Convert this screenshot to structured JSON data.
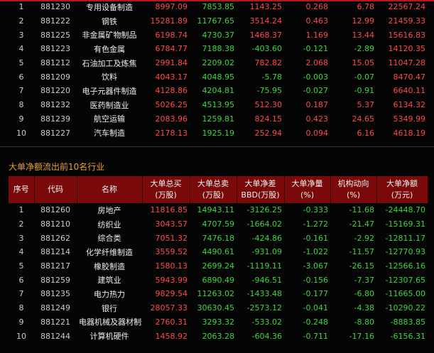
{
  "top_table": {
    "rows": [
      [
        "1",
        "881230",
        "专用设备制造",
        "8997.09",
        "7853.85",
        "1143.25",
        "0.268",
        "6.78",
        "22567.24"
      ],
      [
        "2",
        "881222",
        "钢铁",
        "15281.89",
        "11767.65",
        "3514.24",
        "0.463",
        "12.99",
        "21459.33"
      ],
      [
        "3",
        "881225",
        "非金属矿物制品",
        "6198.74",
        "4730.37",
        "1468.37",
        "1.169",
        "13.44",
        "15616.83"
      ],
      [
        "4",
        "881223",
        "有色金属",
        "6784.77",
        "7188.38",
        "-403.60",
        "-0.121",
        "-2.89",
        "14120.35"
      ],
      [
        "5",
        "881212",
        "石油加工及炼焦",
        "2991.84",
        "2209.02",
        "782.82",
        "2.068",
        "15.05",
        "11047.28"
      ],
      [
        "6",
        "881209",
        "饮料",
        "4043.17",
        "4048.95",
        "-5.78",
        "-0.003",
        "-0.07",
        "8470.47"
      ],
      [
        "7",
        "881220",
        "电子元器件制造",
        "4128.86",
        "4204.81",
        "-75.95",
        "-0.027",
        "-0.91",
        "6640.11"
      ],
      [
        "8",
        "881232",
        "医药制造业",
        "5026.25",
        "4513.95",
        "512.30",
        "0.187",
        "5.37",
        "6134.32"
      ],
      [
        "9",
        "881239",
        "航空运输",
        "2083.96",
        "1259.81",
        "824.15",
        "0.423",
        "24.65",
        "5349.99"
      ],
      [
        "10",
        "881227",
        "汽车制造",
        "2178.13",
        "1925.19",
        "252.94",
        "0.094",
        "6.16",
        "4618.19"
      ]
    ]
  },
  "section_title": "大单净额流出前10名行业",
  "bottom_table": {
    "header": [
      [
        "序号"
      ],
      [
        "代码"
      ],
      [
        "名称"
      ],
      [
        "大单总买",
        "(万股)"
      ],
      [
        "大单总卖",
        "(万股)"
      ],
      [
        "大单净差",
        "BBD(万股)"
      ],
      [
        "大单净量",
        "(%)"
      ],
      [
        "机构动向",
        "(%)"
      ],
      [
        "大单净额",
        "(万元)"
      ]
    ],
    "rows": [
      [
        "1",
        "881260",
        "房地产",
        "11816.85",
        "14943.11",
        "-3126.25",
        "-0.333",
        "-11.68",
        "-24448.70"
      ],
      [
        "2",
        "881210",
        "纺织业",
        "3043.57",
        "4707.59",
        "-1664.02",
        "-1.272",
        "-21.47",
        "-15169.31"
      ],
      [
        "3",
        "881262",
        "综合类",
        "7051.32",
        "7476.18",
        "-424.86",
        "-0.161",
        "-2.92",
        "-12811.17"
      ],
      [
        "4",
        "881214",
        "化学纤维制造",
        "3559.52",
        "4490.61",
        "-931.09",
        "-1.022",
        "-11.57",
        "-12770.93"
      ],
      [
        "5",
        "881217",
        "橡胶制造",
        "1580.13",
        "2699.24",
        "-1119.11",
        "-3.067",
        "-26.15",
        "-12566.16"
      ],
      [
        "6",
        "881259",
        "建筑业",
        "5943.99",
        "6890.49",
        "-946.51",
        "-0.156",
        "-7.37",
        "-12307.65"
      ],
      [
        "7",
        "881235",
        "电力热力",
        "9829.54",
        "11263.02",
        "-1433.48",
        "-0.177",
        "-6.80",
        "-11665.00"
      ],
      [
        "8",
        "881249",
        "银行",
        "28057.33",
        "30630.45",
        "-2573.12",
        "-0.041",
        "-4.38",
        "-10290.22"
      ],
      [
        "9",
        "881221",
        "电器机械及器材制造",
        "2760.31",
        "3293.32",
        "-533.02",
        "-0.248",
        "-8.80",
        "-8883.85"
      ],
      [
        "10",
        "881244",
        "计算机硬件",
        "1458.92",
        "2063.28",
        "-604.36",
        "-0.711",
        "-17.16",
        "-6156.31"
      ]
    ]
  }
}
